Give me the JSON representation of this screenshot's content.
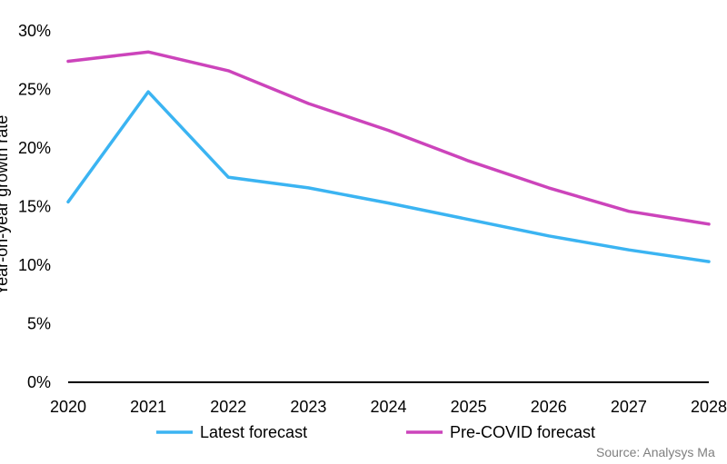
{
  "chart_data": {
    "type": "line",
    "ylabel": "Year-on-year growth rate",
    "xlabel": "",
    "x": [
      "2020",
      "2021",
      "2022",
      "2023",
      "2024",
      "2025",
      "2026",
      "2027",
      "2028"
    ],
    "ylim": [
      0,
      30
    ],
    "yticks": [
      "0%",
      "5%",
      "10%",
      "15%",
      "20%",
      "25%",
      "30%"
    ],
    "ytick_values": [
      0,
      5,
      10,
      15,
      20,
      25,
      30
    ],
    "grid": false,
    "legend_position": "bottom",
    "series": [
      {
        "name": "Latest forecast",
        "color": "#3BB4F2",
        "values": [
          15.4,
          24.8,
          17.5,
          16.6,
          15.3,
          13.9,
          12.5,
          11.3,
          10.3
        ]
      },
      {
        "name": "Pre-COVID forecast",
        "color": "#CC44BB",
        "values": [
          27.4,
          28.2,
          26.6,
          23.8,
          21.5,
          18.9,
          16.6,
          14.6,
          13.5
        ]
      }
    ],
    "source": "Source: Analysys Ma"
  }
}
